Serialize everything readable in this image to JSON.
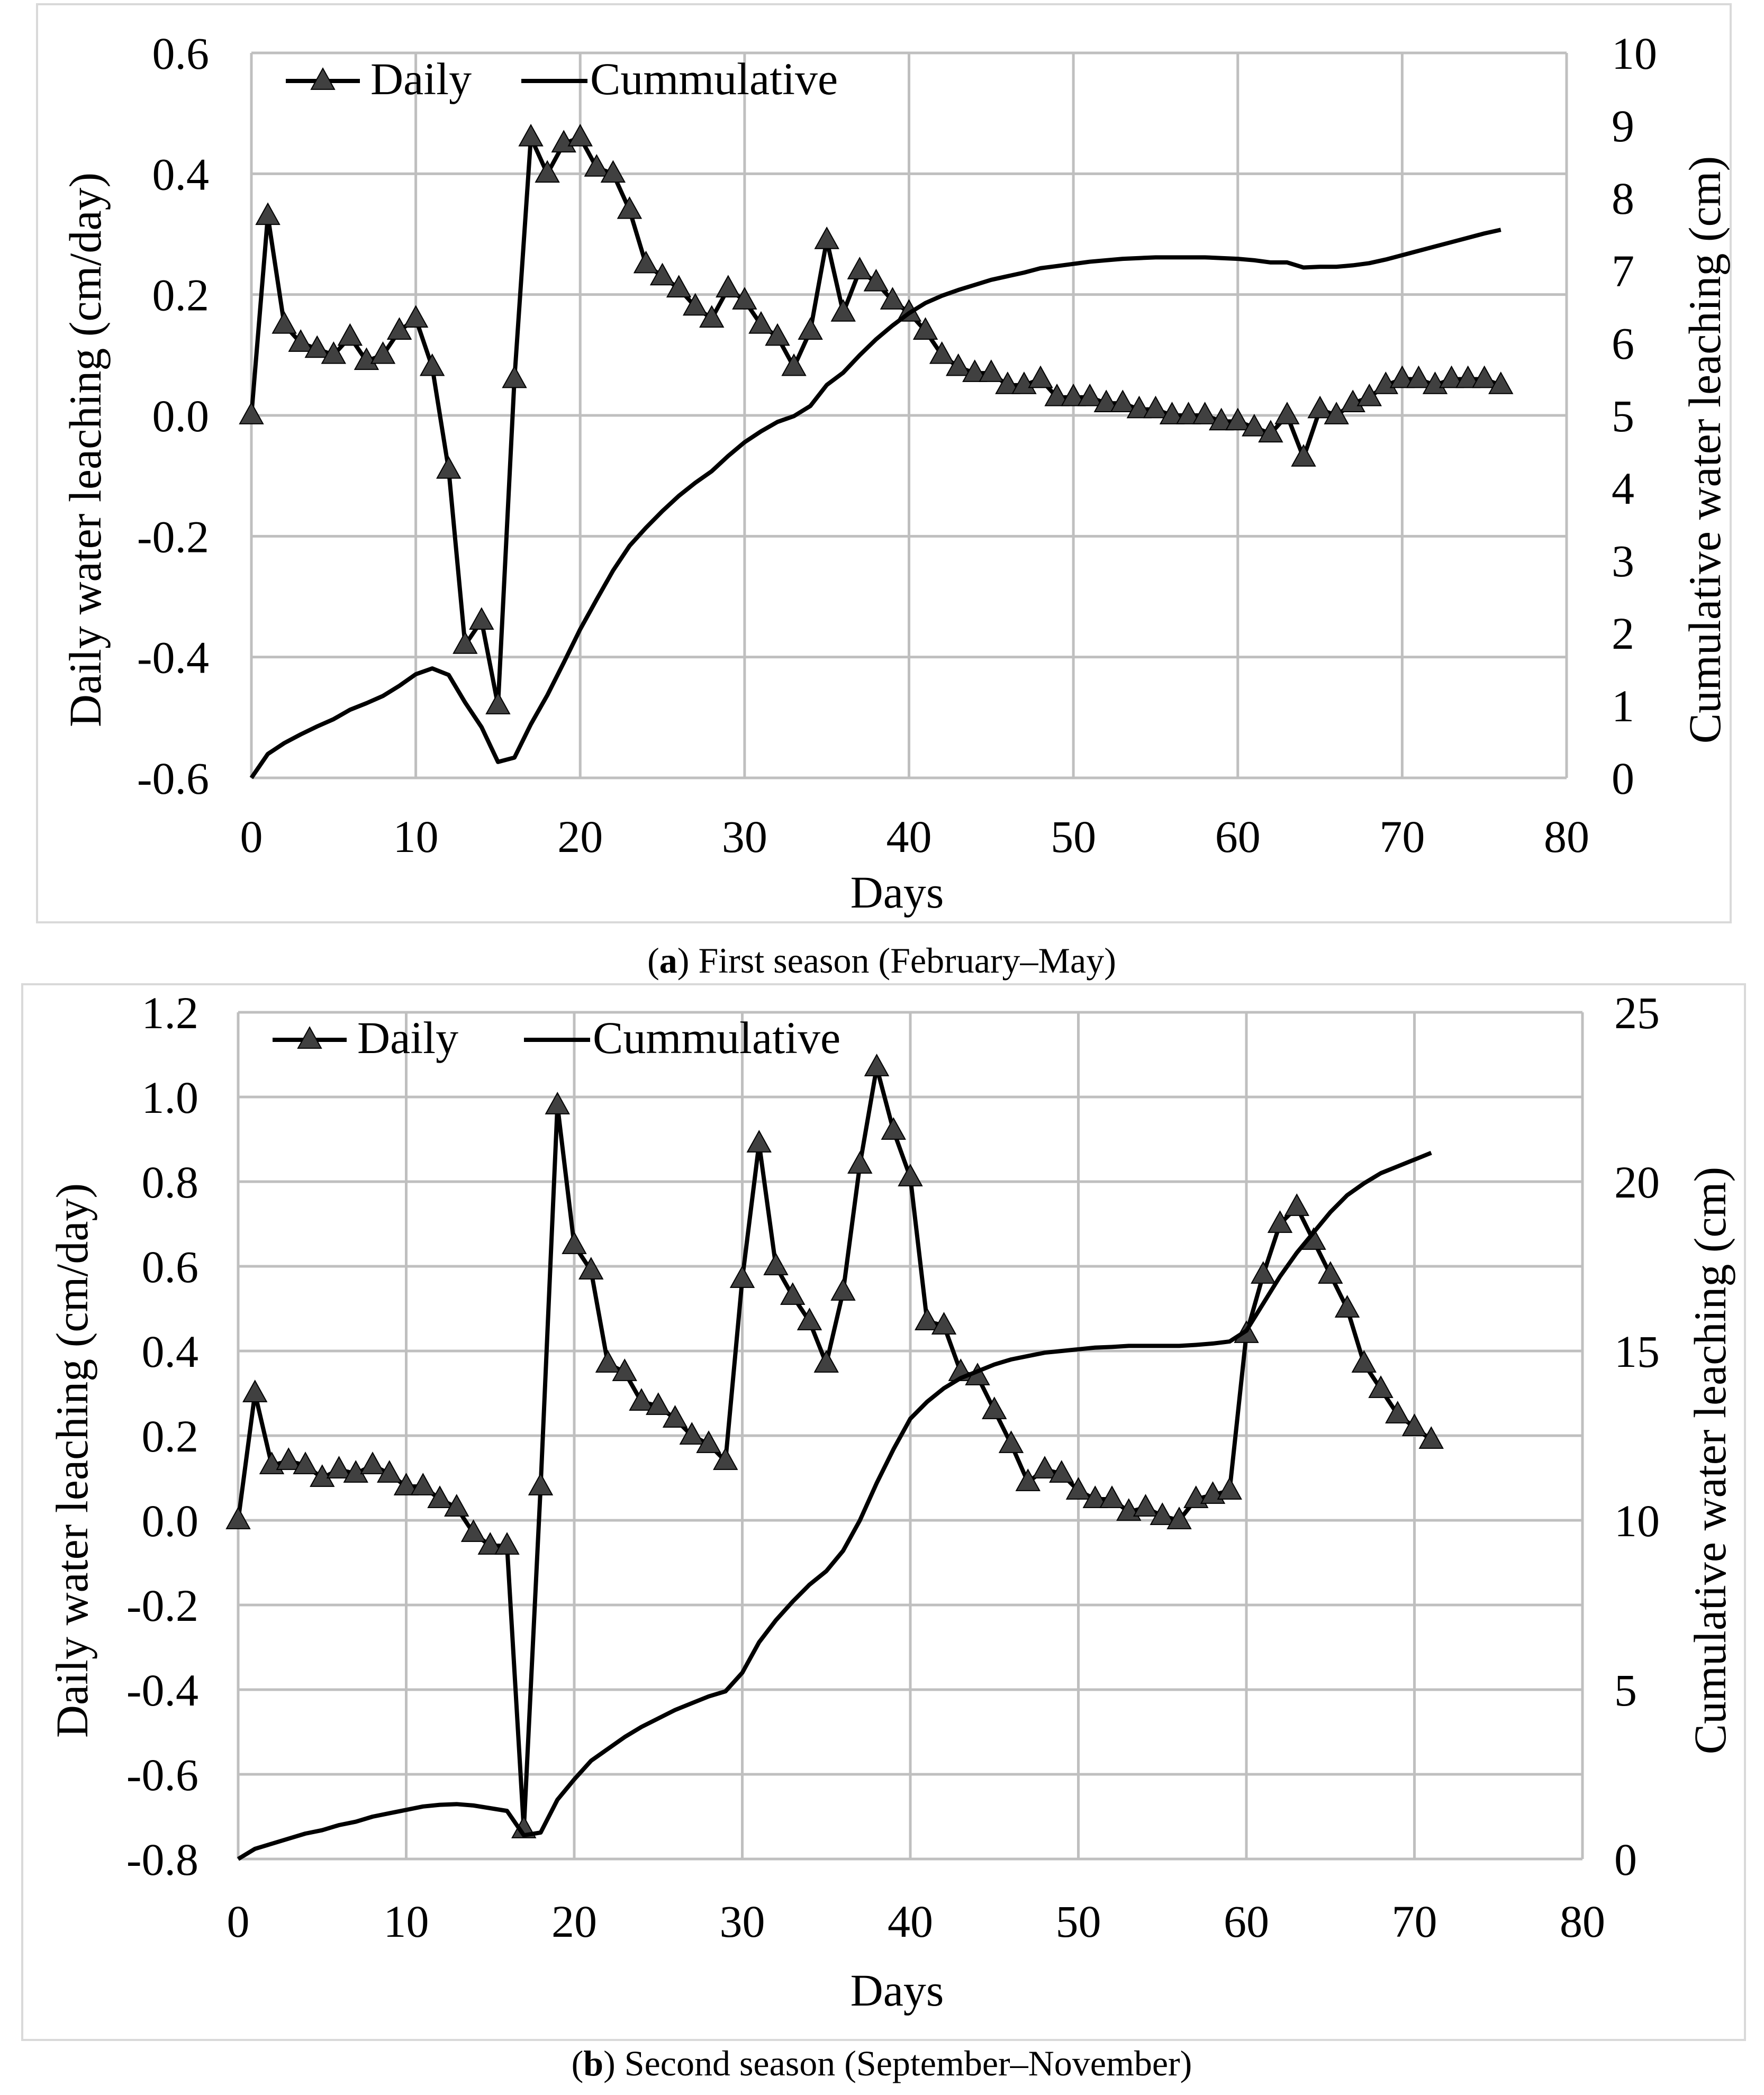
{
  "chart_data": [
    {
      "type": "line",
      "title": "",
      "caption_prefix": "(",
      "caption_letter": "a",
      "caption_text": ") First season (February–May)",
      "xlabel": "Days",
      "ylabel": "Daily water leaching (cm/day)",
      "y2label": "Cumulative water leaching (cm)",
      "xlim": [
        0,
        80
      ],
      "ylim": [
        -0.6,
        0.6
      ],
      "y2lim": [
        0,
        10
      ],
      "x_ticks": [
        0,
        10,
        20,
        30,
        40,
        50,
        60,
        70,
        80
      ],
      "x_tick_labels": [
        "0",
        "10",
        "20",
        "30",
        "40",
        "50",
        "60",
        "70",
        "80"
      ],
      "y_ticks": [
        -0.6,
        -0.4,
        -0.2,
        0.0,
        0.2,
        0.4,
        0.6
      ],
      "y_tick_labels": [
        "-0.6",
        "-0.4",
        "-0.2",
        "0.0",
        "0.2",
        "0.4",
        "0.6"
      ],
      "y2_ticks": [
        0,
        1,
        2,
        3,
        4,
        5,
        6,
        7,
        8,
        9,
        10
      ],
      "y2_tick_labels": [
        "0",
        "1",
        "2",
        "3",
        "4",
        "5",
        "6",
        "7",
        "8",
        "9",
        "10"
      ],
      "legend": [
        "Daily",
        "Cummulative"
      ],
      "series": [
        {
          "name": "Daily",
          "axis": "left",
          "marker": "triangle",
          "x": [
            0,
            1,
            2,
            3,
            4,
            5,
            6,
            7,
            8,
            9,
            10,
            11,
            12,
            13,
            14,
            15,
            16,
            17,
            18,
            19,
            20,
            21,
            22,
            23,
            24,
            25,
            26,
            27,
            28,
            29,
            30,
            31,
            32,
            33,
            34,
            35,
            36,
            37,
            38,
            39,
            40,
            41,
            42,
            43,
            44,
            45,
            46,
            47,
            48,
            49,
            50,
            51,
            52,
            53,
            54,
            55,
            56,
            57,
            58,
            59,
            60,
            61,
            62,
            63,
            64,
            65,
            66,
            67,
            68,
            69,
            70,
            71,
            72,
            73,
            74,
            75,
            76
          ],
          "values": [
            0.0,
            0.33,
            0.15,
            0.12,
            0.11,
            0.1,
            0.13,
            0.09,
            0.1,
            0.14,
            0.16,
            0.08,
            -0.09,
            -0.38,
            -0.34,
            -0.48,
            0.06,
            0.46,
            0.4,
            0.45,
            0.46,
            0.41,
            0.4,
            0.34,
            0.25,
            0.23,
            0.21,
            0.18,
            0.16,
            0.21,
            0.19,
            0.15,
            0.13,
            0.08,
            0.14,
            0.29,
            0.17,
            0.24,
            0.22,
            0.19,
            0.17,
            0.14,
            0.1,
            0.08,
            0.07,
            0.07,
            0.05,
            0.05,
            0.06,
            0.03,
            0.03,
            0.03,
            0.02,
            0.02,
            0.01,
            0.01,
            0.0,
            0.0,
            0.0,
            -0.01,
            -0.01,
            -0.02,
            -0.03,
            0.0,
            -0.07,
            0.01,
            0.0,
            0.02,
            0.03,
            0.05,
            0.06,
            0.06,
            0.05,
            0.06,
            0.06,
            0.06,
            0.05
          ]
        },
        {
          "name": "Cummulative",
          "axis": "right",
          "marker": "none",
          "x": [
            0,
            1,
            2,
            3,
            4,
            5,
            6,
            7,
            8,
            9,
            10,
            11,
            12,
            13,
            14,
            15,
            16,
            17,
            18,
            19,
            20,
            21,
            22,
            23,
            24,
            25,
            26,
            27,
            28,
            29,
            30,
            31,
            32,
            33,
            34,
            35,
            36,
            37,
            38,
            39,
            40,
            41,
            42,
            43,
            44,
            45,
            46,
            47,
            48,
            49,
            50,
            51,
            52,
            53,
            54,
            55,
            56,
            57,
            58,
            59,
            60,
            61,
            62,
            63,
            64,
            65,
            66,
            67,
            68,
            69,
            70,
            71,
            72,
            73,
            74,
            75,
            76
          ],
          "values": [
            0.0,
            0.33,
            0.48,
            0.6,
            0.71,
            0.81,
            0.94,
            1.03,
            1.13,
            1.27,
            1.43,
            1.51,
            1.42,
            1.04,
            0.7,
            0.22,
            0.28,
            0.74,
            1.14,
            1.59,
            2.05,
            2.46,
            2.86,
            3.2,
            3.45,
            3.68,
            3.89,
            4.07,
            4.23,
            4.44,
            4.63,
            4.78,
            4.91,
            4.99,
            5.13,
            5.42,
            5.59,
            5.83,
            6.05,
            6.24,
            6.41,
            6.55,
            6.65,
            6.73,
            6.8,
            6.87,
            6.92,
            6.97,
            7.03,
            7.06,
            7.09,
            7.12,
            7.14,
            7.16,
            7.17,
            7.18,
            7.18,
            7.18,
            7.18,
            7.17,
            7.16,
            7.14,
            7.11,
            7.11,
            7.04,
            7.05,
            7.05,
            7.07,
            7.1,
            7.15,
            7.21,
            7.27,
            7.33,
            7.39,
            7.45,
            7.51,
            7.56
          ]
        }
      ]
    },
    {
      "type": "line",
      "title": "",
      "caption_prefix": "(",
      "caption_letter": "b",
      "caption_text": ") Second season (September–November)",
      "xlabel": "Days",
      "ylabel": "Daily water leaching (cm/day)",
      "y2label": "Cumulative water leaching (cm)",
      "xlim": [
        0,
        80
      ],
      "ylim": [
        -0.8,
        1.2
      ],
      "y2lim": [
        0,
        25
      ],
      "x_ticks": [
        0,
        10,
        20,
        30,
        40,
        50,
        60,
        70,
        80
      ],
      "x_tick_labels": [
        "0",
        "10",
        "20",
        "30",
        "40",
        "50",
        "60",
        "70",
        "80"
      ],
      "y_ticks": [
        -0.8,
        -0.6,
        -0.4,
        -0.2,
        0.0,
        0.2,
        0.4,
        0.6,
        0.8,
        1.0,
        1.2
      ],
      "y_tick_labels": [
        "-0.8",
        "-0.6",
        "-0.4",
        "-0.2",
        "0.0",
        "0.2",
        "0.4",
        "0.6",
        "0.8",
        "1.0",
        "1.2"
      ],
      "y2_ticks": [
        0,
        5,
        10,
        15,
        20,
        25
      ],
      "y2_tick_labels": [
        "0",
        "5",
        "10",
        "15",
        "20",
        "25"
      ],
      "legend": [
        "Daily",
        "Cummulative"
      ],
      "series": [
        {
          "name": "Daily",
          "axis": "left",
          "marker": "triangle",
          "x": [
            0,
            1,
            2,
            3,
            4,
            5,
            6,
            7,
            8,
            9,
            10,
            11,
            12,
            13,
            14,
            15,
            16,
            17,
            18,
            19,
            20,
            21,
            22,
            23,
            24,
            25,
            26,
            27,
            28,
            29,
            30,
            31,
            32,
            33,
            34,
            35,
            36,
            37,
            38,
            39,
            40,
            41,
            42,
            43,
            44,
            45,
            46,
            47,
            48,
            49,
            50,
            51,
            52,
            53,
            54,
            55,
            56,
            57,
            58,
            59,
            60,
            61,
            62,
            63,
            64,
            65,
            66,
            67,
            68,
            69,
            70,
            71
          ],
          "values": [
            0.0,
            0.3,
            0.13,
            0.14,
            0.13,
            0.1,
            0.12,
            0.11,
            0.13,
            0.11,
            0.08,
            0.08,
            0.05,
            0.03,
            -0.03,
            -0.06,
            -0.06,
            -0.73,
            0.08,
            0.98,
            0.65,
            0.59,
            0.37,
            0.35,
            0.28,
            0.27,
            0.24,
            0.2,
            0.18,
            0.14,
            0.57,
            0.89,
            0.6,
            0.53,
            0.47,
            0.37,
            0.54,
            0.84,
            1.07,
            0.92,
            0.81,
            0.47,
            0.46,
            0.35,
            0.34,
            0.26,
            0.18,
            0.09,
            0.12,
            0.11,
            0.07,
            0.05,
            0.05,
            0.02,
            0.03,
            0.01,
            0.0,
            0.05,
            0.06,
            0.07,
            0.44,
            0.58,
            0.7,
            0.74,
            0.66,
            0.58,
            0.5,
            0.37,
            0.31,
            0.25,
            0.22,
            0.19
          ]
        },
        {
          "name": "Cummulative",
          "axis": "right",
          "marker": "none",
          "x": [
            0,
            1,
            2,
            3,
            4,
            5,
            6,
            7,
            8,
            9,
            10,
            11,
            12,
            13,
            14,
            15,
            16,
            17,
            18,
            19,
            20,
            21,
            22,
            23,
            24,
            25,
            26,
            27,
            28,
            29,
            30,
            31,
            32,
            33,
            34,
            35,
            36,
            37,
            38,
            39,
            40,
            41,
            42,
            43,
            44,
            45,
            46,
            47,
            48,
            49,
            50,
            51,
            52,
            53,
            54,
            55,
            56,
            57,
            58,
            59,
            60,
            61,
            62,
            63,
            64,
            65,
            66,
            67,
            68,
            69,
            70,
            71
          ],
          "values": [
            0.0,
            0.3,
            0.45,
            0.6,
            0.75,
            0.85,
            1.0,
            1.1,
            1.25,
            1.35,
            1.45,
            1.55,
            1.6,
            1.62,
            1.58,
            1.5,
            1.42,
            0.7,
            0.78,
            1.75,
            2.35,
            2.9,
            3.25,
            3.6,
            3.9,
            4.15,
            4.4,
            4.6,
            4.8,
            4.95,
            5.5,
            6.4,
            7.05,
            7.6,
            8.1,
            8.5,
            9.1,
            10.0,
            11.1,
            12.1,
            13.0,
            13.5,
            13.9,
            14.2,
            14.4,
            14.6,
            14.75,
            14.85,
            14.95,
            15.0,
            15.05,
            15.1,
            15.12,
            15.15,
            15.15,
            15.15,
            15.15,
            15.18,
            15.22,
            15.28,
            15.6,
            16.4,
            17.2,
            17.9,
            18.5,
            19.1,
            19.6,
            19.95,
            20.25,
            20.45,
            20.65,
            20.85
          ]
        }
      ]
    }
  ]
}
